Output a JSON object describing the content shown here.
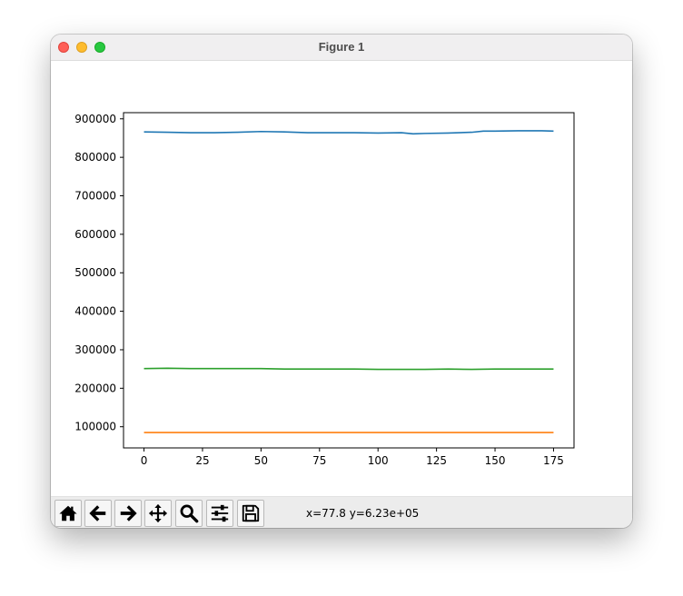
{
  "window": {
    "title": "Figure 1"
  },
  "toolbar": {
    "buttons": [
      {
        "name": "home-button",
        "icon": "home-icon"
      },
      {
        "name": "back-button",
        "icon": "arrow-left-icon"
      },
      {
        "name": "forward-button",
        "icon": "arrow-right-icon"
      },
      {
        "name": "pan-button",
        "icon": "move-icon"
      },
      {
        "name": "zoom-button",
        "icon": "magnifier-icon"
      },
      {
        "name": "configure-subplots-button",
        "icon": "sliders-icon"
      },
      {
        "name": "save-button",
        "icon": "floppy-disk-icon"
      }
    ],
    "coords": "x=77.8 y=6.23e+05"
  },
  "chart_data": {
    "type": "line",
    "title": "",
    "xlabel": "",
    "ylabel": "",
    "xlim": [
      -8.75,
      183.75
    ],
    "ylim": [
      45000,
      916000
    ],
    "xticks": [
      0,
      25,
      50,
      75,
      100,
      125,
      150,
      175
    ],
    "yticks": [
      100000,
      200000,
      300000,
      400000,
      500000,
      600000,
      700000,
      800000,
      900000
    ],
    "grid": false,
    "legend": "none",
    "series": [
      {
        "color": "#1f77b4",
        "x": [
          0,
          10,
          20,
          30,
          40,
          50,
          60,
          70,
          80,
          90,
          100,
          110,
          115,
          120,
          130,
          140,
          145,
          150,
          160,
          170,
          175
        ],
        "values": [
          866000,
          865000,
          864000,
          864000,
          865000,
          867000,
          866000,
          864000,
          864000,
          864000,
          863000,
          864000,
          861000,
          862000,
          863000,
          865000,
          868000,
          868000,
          869000,
          869000,
          868000
        ]
      },
      {
        "color": "#ff7f0e",
        "x": [
          0,
          25,
          50,
          75,
          100,
          125,
          150,
          175
        ],
        "values": [
          85000,
          85000,
          85000,
          85000,
          85000,
          85000,
          85000,
          85000
        ]
      },
      {
        "color": "#2ca02c",
        "x": [
          0,
          10,
          20,
          30,
          40,
          50,
          60,
          70,
          80,
          90,
          100,
          110,
          120,
          130,
          140,
          150,
          160,
          170,
          175
        ],
        "values": [
          251000,
          252000,
          251000,
          251000,
          251000,
          251000,
          250000,
          250000,
          250000,
          250000,
          249000,
          249000,
          249000,
          250000,
          249000,
          250000,
          250000,
          250000,
          250000
        ]
      }
    ]
  }
}
